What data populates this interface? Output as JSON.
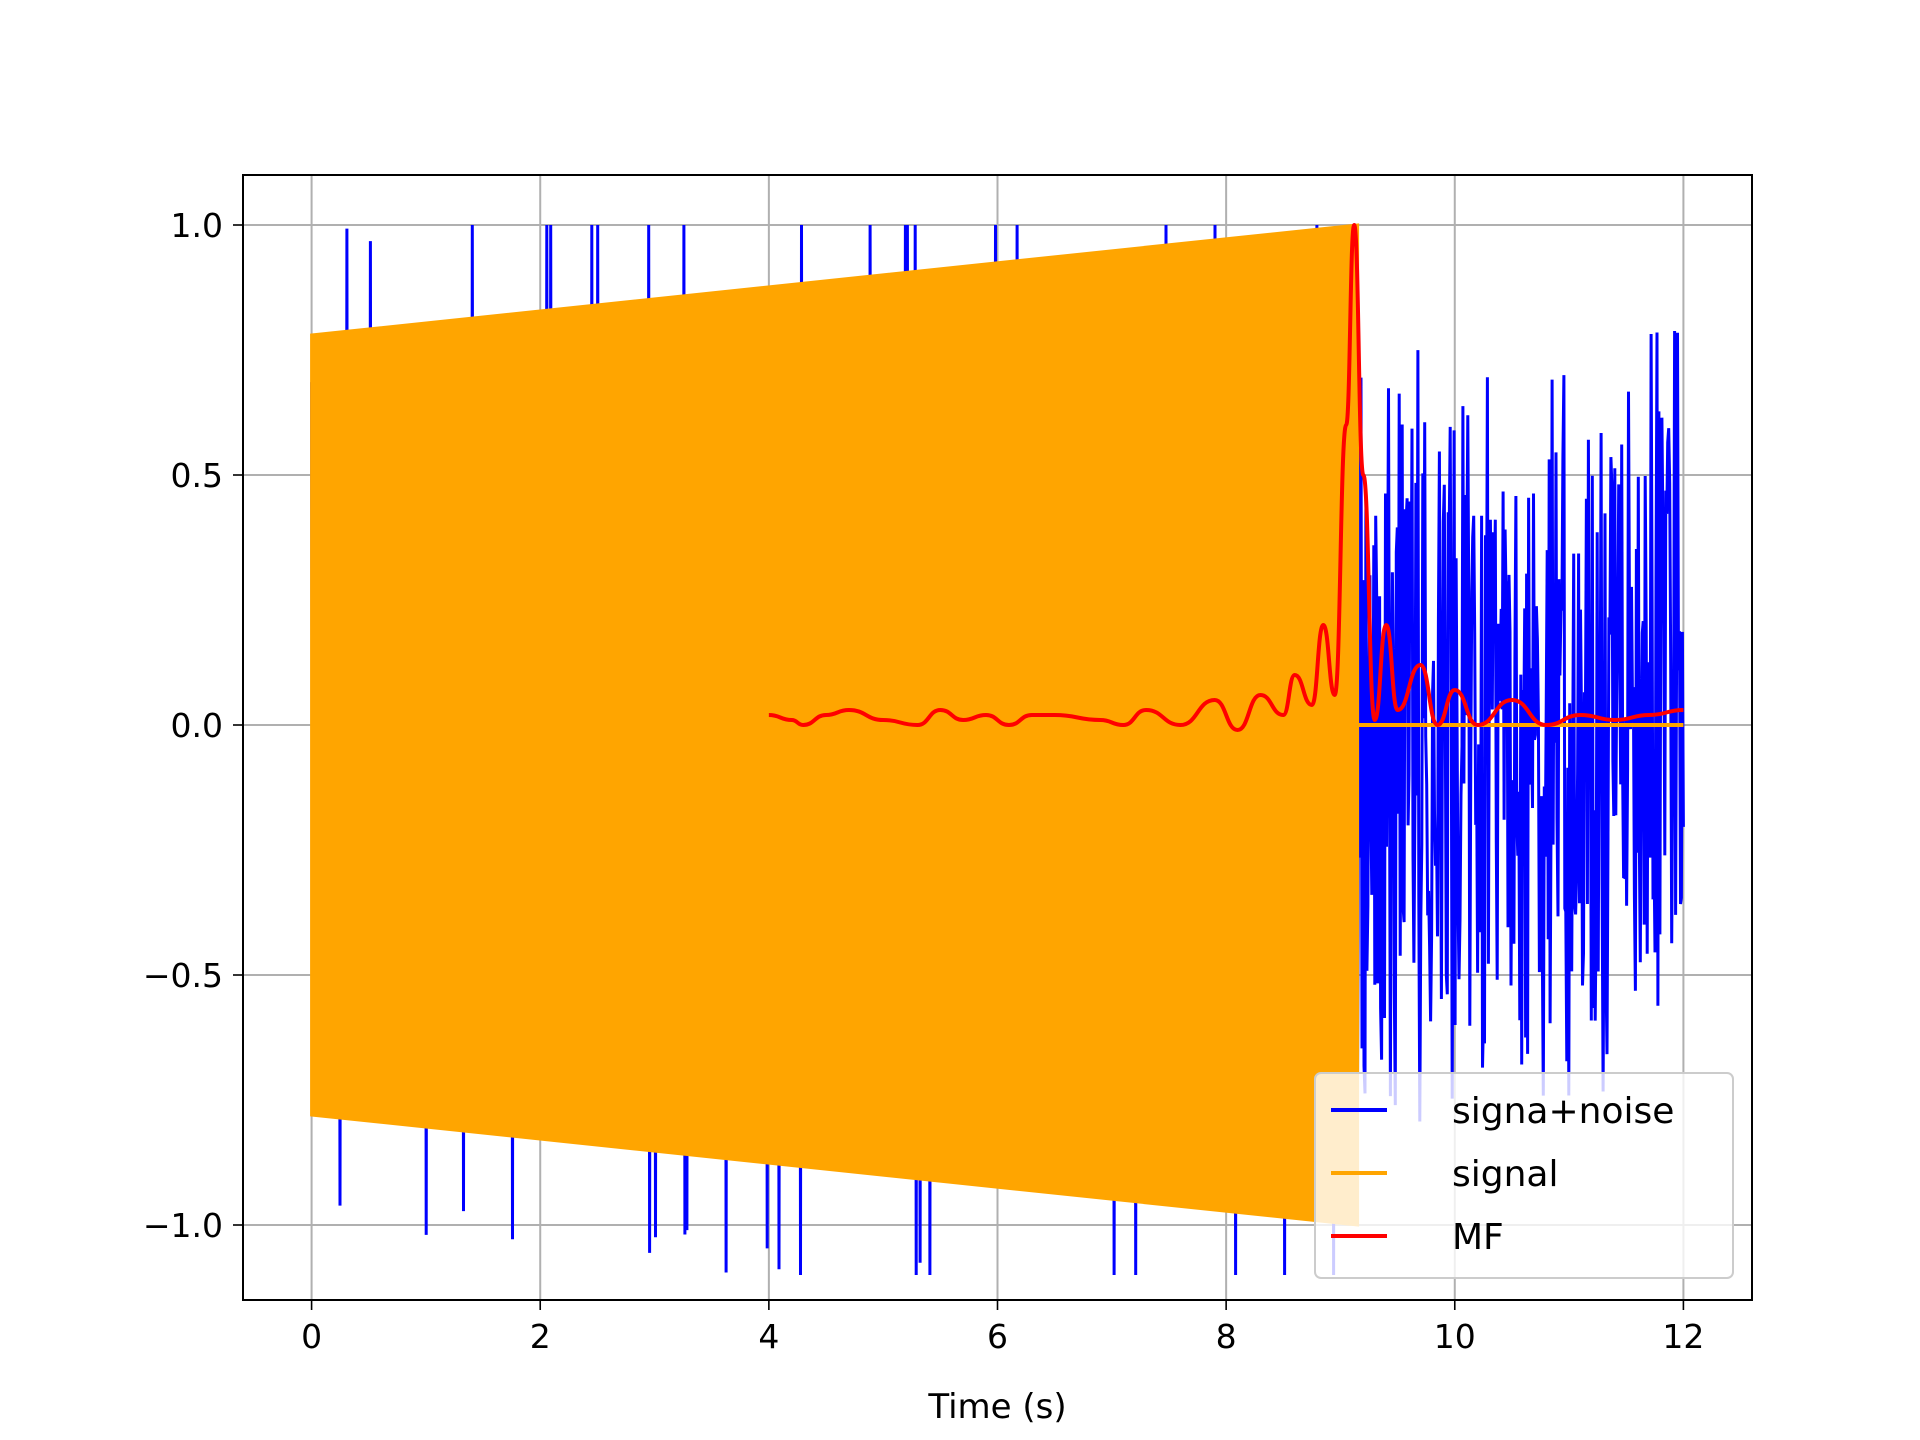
{
  "chart_data": {
    "type": "line",
    "title": "",
    "xlabel": "Time (s)",
    "ylabel": "",
    "xlim": [
      -0.6,
      12.6
    ],
    "ylim": [
      -1.15,
      1.1
    ],
    "xticks": [
      0,
      2,
      4,
      6,
      8,
      10,
      12
    ],
    "xtick_labels": [
      "0",
      "2",
      "4",
      "6",
      "8",
      "10",
      "12"
    ],
    "yticks": [
      1.0,
      0.5,
      0.0,
      -0.5,
      -1.0
    ],
    "ytick_labels": [
      "1.0",
      "0.5",
      "0.0",
      "−0.5",
      "−1.0"
    ],
    "grid": true,
    "legend_position": "lower right",
    "series": [
      {
        "name": "signa+noise",
        "color": "#0000ff",
        "x": [
          0.0,
          9.15,
          12.0
        ],
        "y_envelope_low": [
          -1.03,
          -1.05,
          -0.86
        ],
        "y_envelope_high": [
          1.0,
          1.0,
          0.82
        ],
        "notes_range": [
          0,
          12
        ]
      },
      {
        "name": "signal",
        "color": "#ffa500",
        "x": [
          0.0,
          9.15,
          9.15,
          12.0
        ],
        "y_envelope_high": [
          0.78,
          1.0,
          0.0,
          0.0
        ],
        "y_envelope_low": [
          -0.78,
          -1.0,
          0.0,
          0.0
        ]
      },
      {
        "name": "MF",
        "color": "#ff0000",
        "x": [
          4.0,
          4.2,
          4.3,
          4.5,
          4.7,
          5.0,
          5.3,
          5.5,
          5.7,
          5.9,
          6.1,
          6.3,
          6.5,
          6.9,
          7.1,
          7.3,
          7.6,
          7.9,
          8.1,
          8.3,
          8.5,
          8.6,
          8.75,
          8.85,
          8.95,
          9.05,
          9.12,
          9.2,
          9.3,
          9.4,
          9.5,
          9.7,
          9.85,
          10.0,
          10.2,
          10.5,
          10.8,
          11.1,
          11.4,
          11.7,
          12.0
        ],
        "y": [
          0.02,
          0.01,
          0.0,
          0.02,
          0.03,
          0.01,
          0.0,
          0.03,
          0.01,
          0.02,
          0.0,
          0.02,
          0.02,
          0.01,
          0.0,
          0.03,
          0.0,
          0.05,
          -0.01,
          0.06,
          0.02,
          0.1,
          0.04,
          0.2,
          0.06,
          0.6,
          1.0,
          0.5,
          0.01,
          0.2,
          0.03,
          0.12,
          0.0,
          0.07,
          0.0,
          0.05,
          0.0,
          0.02,
          0.01,
          0.02,
          0.03
        ]
      }
    ]
  }
}
